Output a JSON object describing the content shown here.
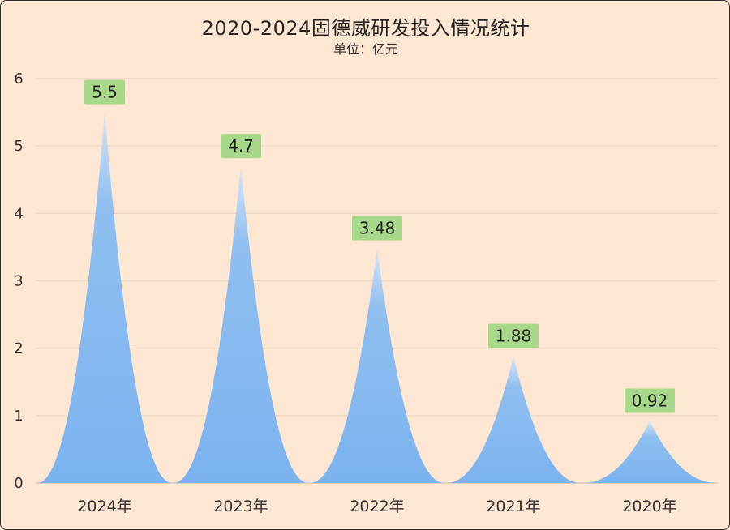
{
  "chart_data": {
    "type": "area",
    "title": "2020-2024固德威研发投入情况统计",
    "subtitle": "单位：亿元",
    "categories": [
      "2024年",
      "2023年",
      "2022年",
      "2021年",
      "2020年"
    ],
    "values": [
      5.5,
      4.7,
      3.48,
      1.88,
      0.92
    ],
    "data_labels": [
      "5.5",
      "4.7",
      "3.48",
      "1.88",
      "0.92"
    ],
    "ylim": [
      0,
      6
    ],
    "yticks": [
      "0",
      "1",
      "2",
      "3",
      "4",
      "5",
      "6"
    ],
    "grid": true,
    "xlabel": "",
    "ylabel": "",
    "colors": {
      "fill": "#7fb6f0",
      "label_bg": "#a8d98a",
      "background": "#fde6d2",
      "grid": "#e9d3c2"
    }
  }
}
